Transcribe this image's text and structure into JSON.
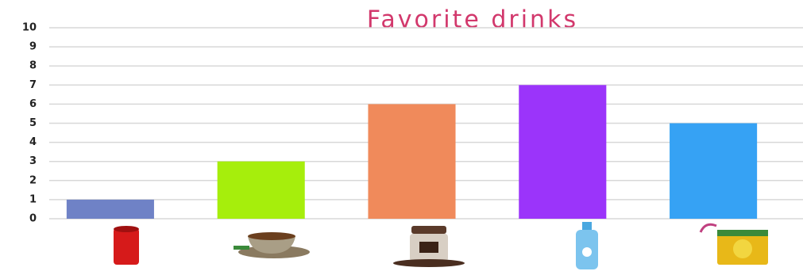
{
  "chart_data": {
    "type": "bar",
    "title": "Favorite drinks",
    "categories": [
      null,
      null,
      null,
      null,
      null
    ],
    "values": [
      1,
      3,
      6,
      7,
      5
    ],
    "colors": [
      "#6f82c6",
      "#a6ee0c",
      "#f08a5b",
      "#9b34fa",
      "#36a2f4"
    ],
    "ylim": [
      0,
      10
    ],
    "yticks": [
      0,
      1,
      2,
      3,
      4,
      5,
      6,
      7,
      8,
      9,
      10
    ],
    "grid": true
  }
}
